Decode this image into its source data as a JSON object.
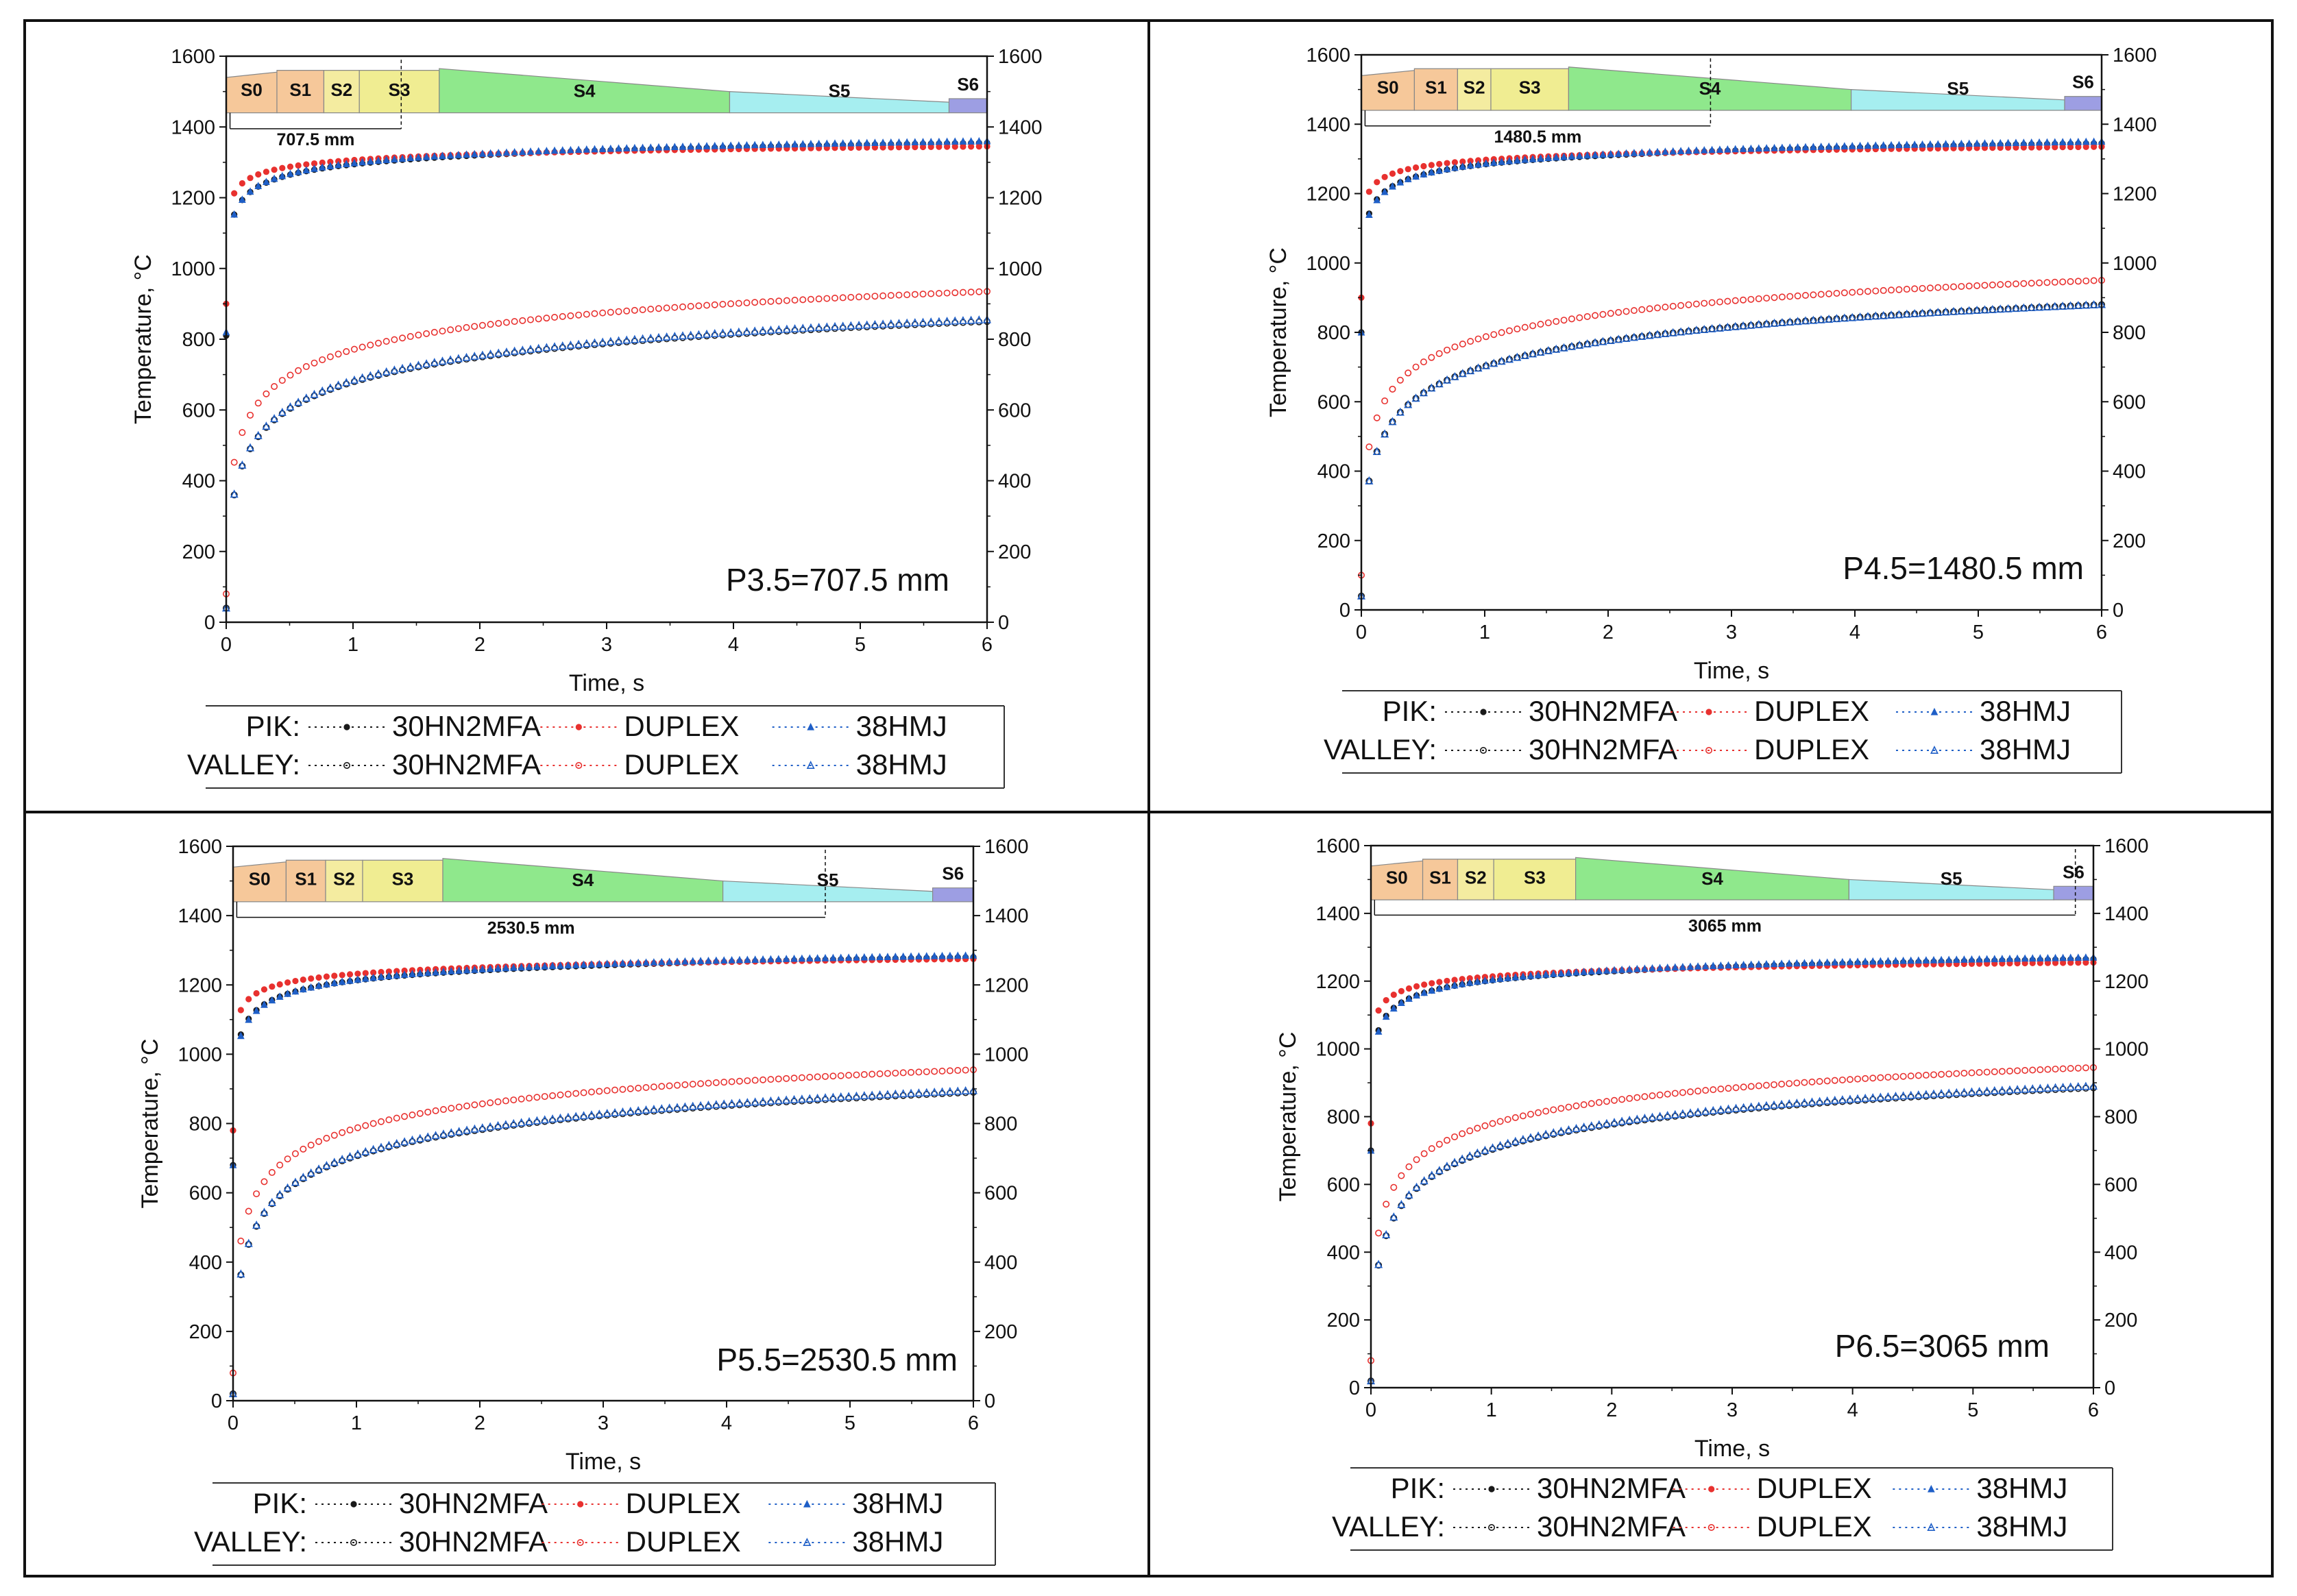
{
  "colors": {
    "pik_30hn2mfa": "#1a1a1a",
    "duplex": "#e8312f",
    "hmj38": "#1f5fc7",
    "s0": "#f6c89a",
    "s1": "#f6c89a",
    "s2": "#f4eca0",
    "s3": "#f0ed92",
    "s4": "#8fe88c",
    "s5": "#a6eef0",
    "s6": "#9d9ee3"
  },
  "legend": {
    "pik_label": "PIK:",
    "valley_label": "VALLEY:",
    "series_names": [
      "30HN2MFA",
      "DUPLEX",
      "38HMJ"
    ]
  },
  "chart_data": [
    {
      "type": "scatter",
      "panel_label": "P3.5=707.5 mm",
      "xlabel": "Time, s",
      "ylabel": "Temperature, °C",
      "xlim": [
        0,
        6
      ],
      "ylim": [
        0,
        1600
      ],
      "xticks": [
        0,
        1,
        2,
        3,
        4,
        5,
        6
      ],
      "yticks": [
        0,
        200,
        400,
        600,
        800,
        1000,
        1200,
        1400,
        1600
      ],
      "stands": {
        "labels": [
          "S0",
          "S1",
          "S2",
          "S3",
          "S4",
          "S5",
          "S6"
        ],
        "boundaries_s": [
          0.0,
          0.4,
          0.77,
          1.05,
          1.68,
          3.97,
          5.7,
          6.0
        ],
        "marker_s": 1.38,
        "marker_label": "707.5 mm"
      },
      "series": [
        {
          "name": "30HN2MFA",
          "kind": "PIK",
          "model": {
            "start": 810,
            "end": 1355,
            "a": 0.07,
            "p": 0.24
          }
        },
        {
          "name": "DUPLEX",
          "kind": "PIK",
          "model": {
            "start": 900,
            "end": 1345,
            "a": 0.05,
            "p": 0.2
          }
        },
        {
          "name": "38HMJ",
          "kind": "PIK",
          "model": {
            "start": 820,
            "end": 1360,
            "a": 0.07,
            "p": 0.25
          }
        },
        {
          "name": "30HN2MFA",
          "kind": "VALLEY",
          "model": {
            "start": 40,
            "end": 850,
            "a": 0.06,
            "p": 0.5
          }
        },
        {
          "name": "DUPLEX",
          "kind": "VALLEY",
          "model": {
            "start": 80,
            "end": 935,
            "a": 0.05,
            "p": 0.47
          }
        },
        {
          "name": "38HMJ",
          "kind": "VALLEY",
          "model": {
            "start": 40,
            "end": 855,
            "a": 0.06,
            "p": 0.5
          }
        }
      ]
    },
    {
      "type": "scatter",
      "panel_label": "P4.5=1480.5 mm",
      "xlabel": "Time, s",
      "ylabel": "Temperature, °C",
      "xlim": [
        0,
        6
      ],
      "ylim": [
        0,
        1600
      ],
      "xticks": [
        0,
        1,
        2,
        3,
        4,
        5,
        6
      ],
      "yticks": [
        0,
        200,
        400,
        600,
        800,
        1000,
        1200,
        1400,
        1600
      ],
      "stands": {
        "labels": [
          "S0",
          "S1",
          "S2",
          "S3",
          "S4",
          "S5",
          "S6"
        ],
        "boundaries_s": [
          0.0,
          0.43,
          0.78,
          1.05,
          1.68,
          3.97,
          5.7,
          6.0
        ],
        "marker_s": 2.83,
        "marker_label": "1480.5 mm"
      },
      "series": [
        {
          "name": "30HN2MFA",
          "kind": "PIK",
          "model": {
            "start": 800,
            "end": 1345,
            "a": 0.07,
            "p": 0.24
          }
        },
        {
          "name": "DUPLEX",
          "kind": "PIK",
          "model": {
            "start": 900,
            "end": 1335,
            "a": 0.05,
            "p": 0.2
          }
        },
        {
          "name": "38HMJ",
          "kind": "PIK",
          "model": {
            "start": 800,
            "end": 1350,
            "a": 0.07,
            "p": 0.25
          }
        },
        {
          "name": "30HN2MFA",
          "kind": "VALLEY",
          "model": {
            "start": 40,
            "end": 880,
            "a": 0.06,
            "p": 0.5
          }
        },
        {
          "name": "DUPLEX",
          "kind": "VALLEY",
          "model": {
            "start": 100,
            "end": 950,
            "a": 0.05,
            "p": 0.47
          }
        },
        {
          "name": "38HMJ",
          "kind": "VALLEY",
          "model": {
            "start": 40,
            "end": 880,
            "a": 0.06,
            "p": 0.5
          }
        }
      ]
    },
    {
      "type": "scatter",
      "panel_label": "P5.5=2530.5 mm",
      "xlabel": "Time, s",
      "ylabel": "Temperature, °C",
      "xlim": [
        0,
        6
      ],
      "ylim": [
        0,
        1600
      ],
      "xticks": [
        0,
        1,
        2,
        3,
        4,
        5,
        6
      ],
      "yticks": [
        0,
        200,
        400,
        600,
        800,
        1000,
        1200,
        1400,
        1600
      ],
      "stands": {
        "labels": [
          "S0",
          "S1",
          "S2",
          "S3",
          "S4",
          "S5",
          "S6"
        ],
        "boundaries_s": [
          0.0,
          0.43,
          0.75,
          1.05,
          1.7,
          3.97,
          5.67,
          6.0
        ],
        "marker_s": 4.8,
        "marker_label": "2530.5 mm"
      },
      "series": [
        {
          "name": "30HN2MFA",
          "kind": "PIK",
          "model": {
            "start": 680,
            "end": 1280,
            "a": 0.07,
            "p": 0.24
          }
        },
        {
          "name": "DUPLEX",
          "kind": "PIK",
          "model": {
            "start": 780,
            "end": 1275,
            "a": 0.05,
            "p": 0.2
          }
        },
        {
          "name": "38HMJ",
          "kind": "PIK",
          "model": {
            "start": 680,
            "end": 1285,
            "a": 0.07,
            "p": 0.25
          }
        },
        {
          "name": "30HN2MFA",
          "kind": "VALLEY",
          "model": {
            "start": 20,
            "end": 890,
            "a": 0.06,
            "p": 0.5
          }
        },
        {
          "name": "DUPLEX",
          "kind": "VALLEY",
          "model": {
            "start": 80,
            "end": 955,
            "a": 0.05,
            "p": 0.47
          }
        },
        {
          "name": "38HMJ",
          "kind": "VALLEY",
          "model": {
            "start": 20,
            "end": 895,
            "a": 0.06,
            "p": 0.5
          }
        }
      ]
    },
    {
      "type": "scatter",
      "panel_label": "P6.5=3065 mm",
      "xlabel": "Time, s",
      "ylabel": "Temperature, °C",
      "xlim": [
        0,
        6
      ],
      "ylim": [
        0,
        1600
      ],
      "xticks": [
        0,
        1,
        2,
        3,
        4,
        5,
        6
      ],
      "yticks": [
        0,
        200,
        400,
        600,
        800,
        1000,
        1200,
        1400,
        1600
      ],
      "stands": {
        "labels": [
          "S0",
          "S1",
          "S2",
          "S3",
          "S4",
          "S5",
          "S6"
        ],
        "boundaries_s": [
          0.0,
          0.43,
          0.72,
          1.02,
          1.7,
          3.97,
          5.67,
          6.0
        ],
        "marker_s": 5.85,
        "marker_label": "3065 mm"
      },
      "series": [
        {
          "name": "30HN2MFA",
          "kind": "PIK",
          "model": {
            "start": 700,
            "end": 1265,
            "a": 0.07,
            "p": 0.24
          }
        },
        {
          "name": "DUPLEX",
          "kind": "PIK",
          "model": {
            "start": 780,
            "end": 1255,
            "a": 0.05,
            "p": 0.2
          }
        },
        {
          "name": "38HMJ",
          "kind": "PIK",
          "model": {
            "start": 700,
            "end": 1270,
            "a": 0.07,
            "p": 0.25
          }
        },
        {
          "name": "30HN2MFA",
          "kind": "VALLEY",
          "model": {
            "start": 20,
            "end": 885,
            "a": 0.06,
            "p": 0.5
          }
        },
        {
          "name": "DUPLEX",
          "kind": "VALLEY",
          "model": {
            "start": 80,
            "end": 945,
            "a": 0.05,
            "p": 0.47
          }
        },
        {
          "name": "38HMJ",
          "kind": "VALLEY",
          "model": {
            "start": 20,
            "end": 890,
            "a": 0.06,
            "p": 0.5
          }
        }
      ]
    }
  ]
}
